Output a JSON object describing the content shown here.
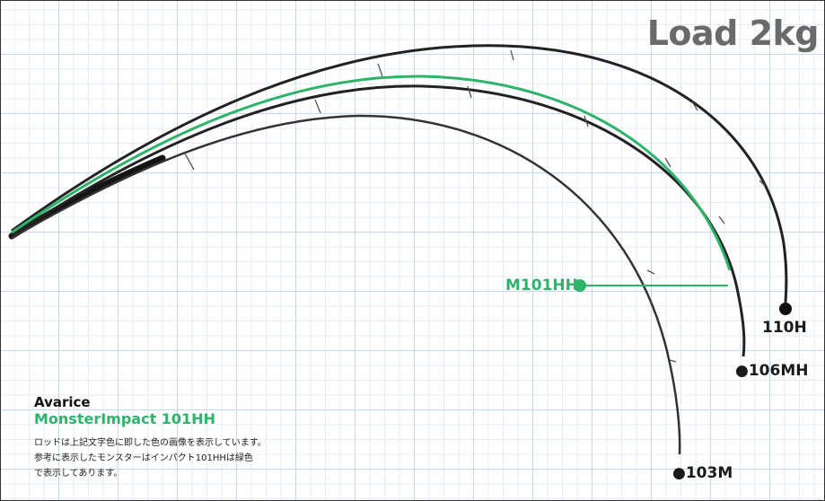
{
  "title": "Load 2kg",
  "colors": {
    "rod": "#1e1e1e",
    "highlight": "#2eb36b",
    "label": "#1a1a1a",
    "title": "#6a6a6a"
  },
  "rods": [
    {
      "label": "110H"
    },
    {
      "label": "●106MH"
    },
    {
      "label": "●103M"
    },
    {
      "label": "M101HH",
      "highlight": true
    }
  ],
  "info": {
    "brand": "Avarice",
    "model": "MonsterImpact 101HH",
    "notes": [
      "ロッドは上記文字色に即した色の画像を表示しています。",
      "参考に表示したモンスターはインパクト101HHは緑色",
      "で表示してあります。"
    ]
  }
}
